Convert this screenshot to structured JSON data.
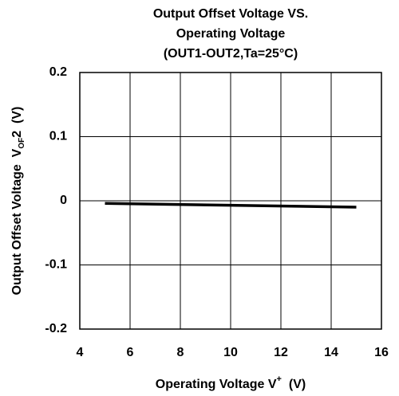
{
  "chart_data": {
    "type": "line",
    "title": [
      "Output Offset Voltage VS.",
      "Operating Voltage",
      "(OUT1-OUT2,Ta=25°C)"
    ],
    "xlabel": [
      "Operating Voltage  V",
      "+",
      "  (V)"
    ],
    "ylabel": [
      "Output Offset Voltage  V",
      "OF",
      "2  (V)"
    ],
    "x": [
      5,
      10,
      15
    ],
    "values": [
      -0.004,
      -0.007,
      -0.01
    ],
    "color": "#000000",
    "xlim": [
      4,
      16
    ],
    "xticks": [
      4,
      6,
      8,
      10,
      12,
      14,
      16
    ],
    "ylim": [
      -0.2,
      0.2
    ],
    "yticks": [
      0.2,
      0.1,
      0,
      -0.1,
      -0.2
    ],
    "grid": true
  }
}
